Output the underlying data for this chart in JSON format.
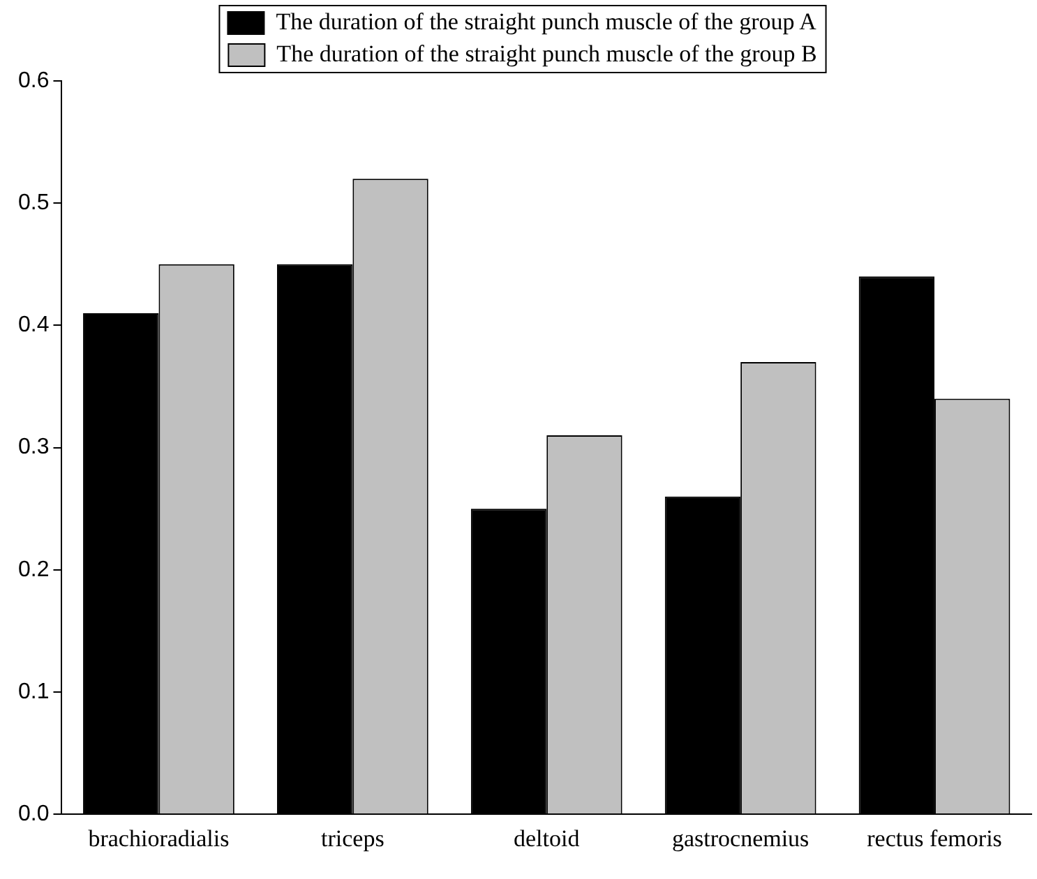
{
  "chart_data": {
    "type": "bar",
    "categories": [
      "brachioradialis",
      "triceps",
      "deltoid",
      "gastrocnemius",
      "rectus femoris"
    ],
    "series": [
      {
        "name": "The duration of the straight punch muscle of the group A",
        "color": "#000000",
        "values": [
          0.41,
          0.45,
          0.25,
          0.26,
          0.44
        ]
      },
      {
        "name": "The duration of the straight punch muscle of the group B",
        "color": "#c0c0c0",
        "values": [
          0.45,
          0.52,
          0.31,
          0.37,
          0.34
        ]
      }
    ],
    "ylim": [
      0,
      0.6
    ],
    "yticks": [
      {
        "value": 0,
        "label": "0.0"
      },
      {
        "value": 0.1,
        "label": "0.1"
      },
      {
        "value": 0.2,
        "label": "0.2"
      },
      {
        "value": 0.3,
        "label": "0.3"
      },
      {
        "value": 0.4,
        "label": "0.4"
      },
      {
        "value": 0.5,
        "label": "0.5"
      },
      {
        "value": 0.6,
        "label": "0.6"
      }
    ],
    "grid": false,
    "legend": "top"
  }
}
